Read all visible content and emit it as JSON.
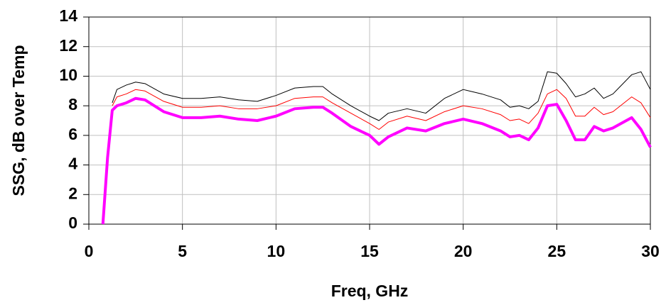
{
  "chart_data": {
    "type": "line",
    "xlabel": "Freq,  GHz",
    "ylabel": "SSG, dB  over Temp",
    "x": [
      0.75,
      1,
      1.25,
      1.5,
      2,
      2.5,
      3,
      4,
      5,
      6,
      7,
      8,
      9,
      10,
      11,
      12,
      12.5,
      13,
      14,
      15,
      15.5,
      16,
      17,
      18,
      19,
      20,
      21,
      22,
      22.5,
      23,
      23.5,
      24,
      24.5,
      25,
      25.5,
      26,
      26.5,
      27,
      27.5,
      28,
      29,
      29.5,
      30
    ],
    "series": [
      {
        "color": "#000000",
        "values": [
          null,
          null,
          8.2,
          9.1,
          9.4,
          9.6,
          9.5,
          8.8,
          8.5,
          8.5,
          8.6,
          8.4,
          8.3,
          8.7,
          9.2,
          9.3,
          9.3,
          8.8,
          8.0,
          7.3,
          7.0,
          7.5,
          7.8,
          7.5,
          8.5,
          9.1,
          8.8,
          8.4,
          7.9,
          8.0,
          7.8,
          8.3,
          10.3,
          10.2,
          9.5,
          8.6,
          8.8,
          9.2,
          8.5,
          8.8,
          10.1,
          10.3,
          9.1
        ]
      },
      {
        "color": "#ff0000",
        "values": [
          null,
          null,
          8.0,
          8.6,
          8.8,
          9.1,
          9.0,
          8.3,
          7.9,
          7.9,
          8.0,
          7.8,
          7.8,
          8.0,
          8.5,
          8.6,
          8.6,
          8.2,
          7.5,
          6.8,
          6.4,
          6.9,
          7.3,
          7.0,
          7.6,
          8.0,
          7.8,
          7.4,
          7.0,
          7.1,
          6.8,
          7.5,
          8.8,
          9.1,
          8.5,
          7.3,
          7.3,
          7.9,
          7.4,
          7.6,
          8.6,
          8.2,
          7.2
        ]
      },
      {
        "color": "#ff00ff",
        "values": [
          0,
          4.5,
          7.7,
          8.0,
          8.2,
          8.5,
          8.4,
          7.6,
          7.2,
          7.2,
          7.3,
          7.1,
          7.0,
          7.3,
          7.8,
          7.9,
          7.9,
          7.5,
          6.6,
          6.0,
          5.4,
          5.9,
          6.5,
          6.3,
          6.8,
          7.1,
          6.8,
          6.3,
          5.9,
          6.0,
          5.7,
          6.5,
          8.0,
          8.1,
          7.0,
          5.7,
          5.7,
          6.6,
          6.3,
          6.5,
          7.2,
          6.4,
          5.2
        ]
      }
    ],
    "xlim": [
      0,
      30
    ],
    "xticks": [
      0,
      5,
      10,
      15,
      20,
      25,
      30
    ],
    "ylim": [
      0,
      14
    ],
    "yticks": [
      0,
      2,
      4,
      6,
      8,
      10,
      12,
      14
    ],
    "grid": true
  }
}
